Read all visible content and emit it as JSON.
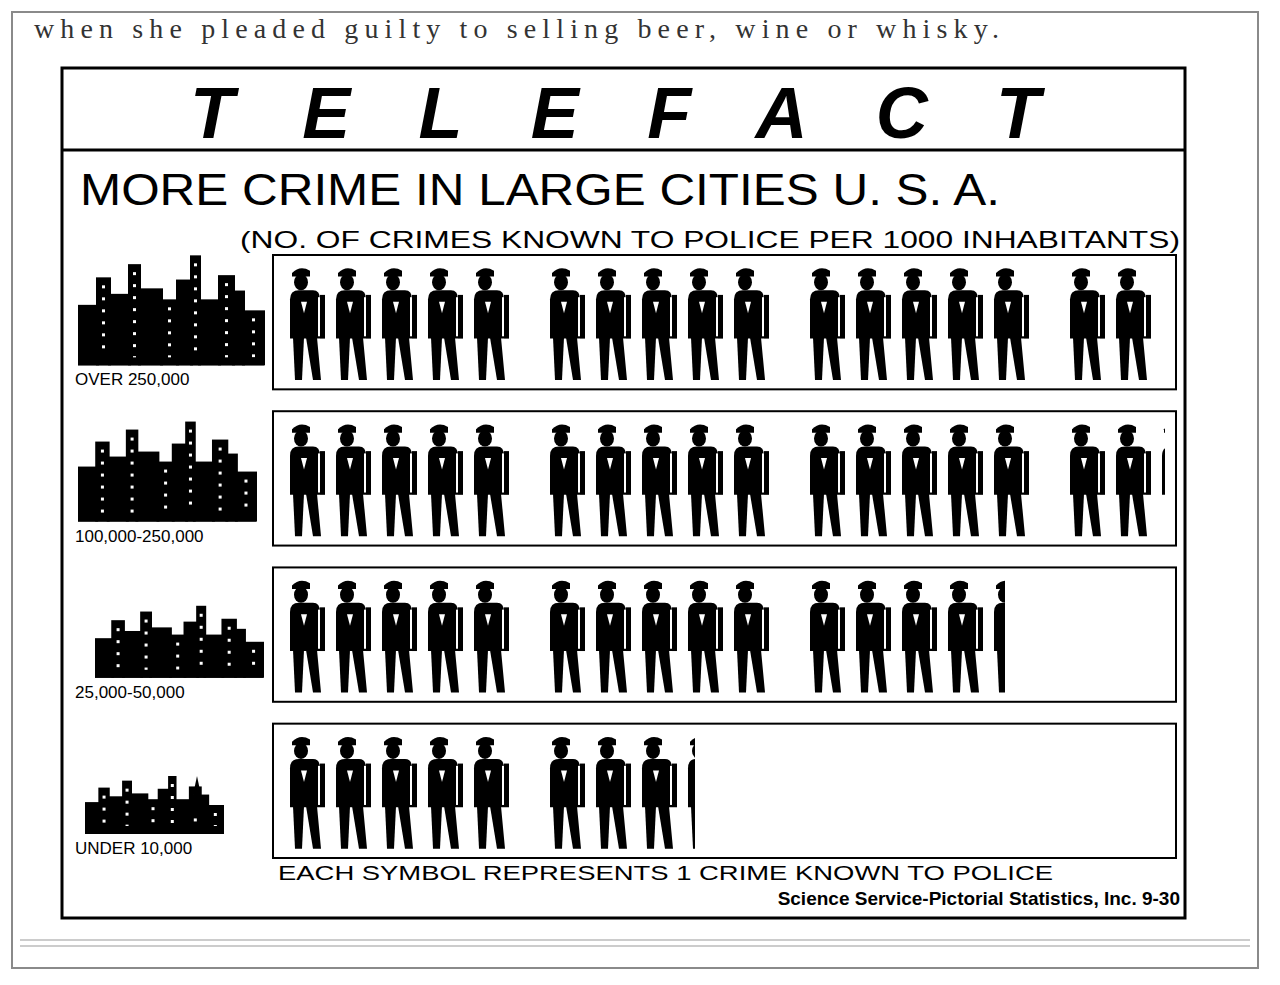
{
  "chart_data": {
    "type": "pictograph",
    "title": "MORE CRIME IN LARGE CITIES U. S. A.",
    "subtitle": "(NO. OF CRIMES KNOWN TO POLICE PER 1000 INHABITANTS)",
    "annotations": [
      "when she pleaded guilty to selling beer, wine or whisky.",
      "TELEFACT",
      "EACH SYMBOL REPRESENTS 1 CRIME KNOWN TO POLICE",
      "Science Service-Pictorial Statistics, Inc. 9-30"
    ],
    "categories": [
      "OVER 250,000",
      "100,000-250,000",
      "25,000-50,000",
      "UNDER 10,000"
    ],
    "values": [
      17,
      17.2,
      14.4,
      8.3
    ],
    "color": "#000000"
  }
}
